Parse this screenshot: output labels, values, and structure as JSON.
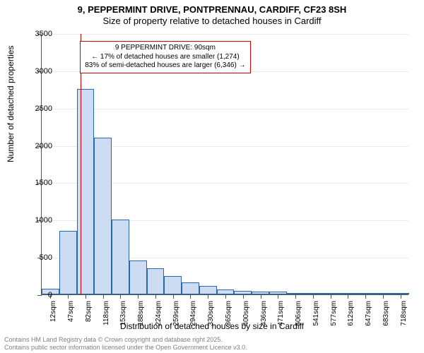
{
  "title": {
    "line1": "9, PEPPERMINT DRIVE, PONTPRENNAU, CARDIFF, CF23 8SH",
    "line2": "Size of property relative to detached houses in Cardiff"
  },
  "chart": {
    "type": "histogram",
    "y_axis": {
      "title": "Number of detached properties",
      "min": 0,
      "max": 3500,
      "tick_step": 500,
      "ticks": [
        0,
        500,
        1000,
        1500,
        2000,
        2500,
        3000,
        3500
      ]
    },
    "x_axis": {
      "title": "Distribution of detached houses by size in Cardiff",
      "labels": [
        "12sqm",
        "47sqm",
        "82sqm",
        "118sqm",
        "153sqm",
        "188sqm",
        "224sqm",
        "259sqm",
        "294sqm",
        "330sqm",
        "365sqm",
        "400sqm",
        "436sqm",
        "471sqm",
        "506sqm",
        "541sqm",
        "577sqm",
        "612sqm",
        "647sqm",
        "683sqm",
        "718sqm"
      ]
    },
    "bars": {
      "values": [
        80,
        850,
        2750,
        2100,
        1000,
        450,
        350,
        250,
        160,
        110,
        70,
        50,
        35,
        40,
        15,
        10,
        8,
        8,
        6,
        5,
        4
      ],
      "fill_color": "#ccddf3",
      "border_color": "#2a67b3"
    },
    "marker": {
      "bin_index": 2,
      "fraction_in_bin": 0.23,
      "color": "#d00000"
    },
    "annotation": {
      "line1": "9 PEPPERMINT DRIVE: 90sqm",
      "line2": "← 17% of detached houses are smaller (1,274)",
      "line3": "83% of semi-detached houses are larger (6,346) →",
      "border_color": "#d00000"
    },
    "grid_color": "#eaeaea",
    "background_color": "#ffffff"
  },
  "footer": {
    "line1": "Contains HM Land Registry data © Crown copyright and database right 2025.",
    "line2": "Contains public sector information licensed under the Open Government Licence v3.0."
  }
}
